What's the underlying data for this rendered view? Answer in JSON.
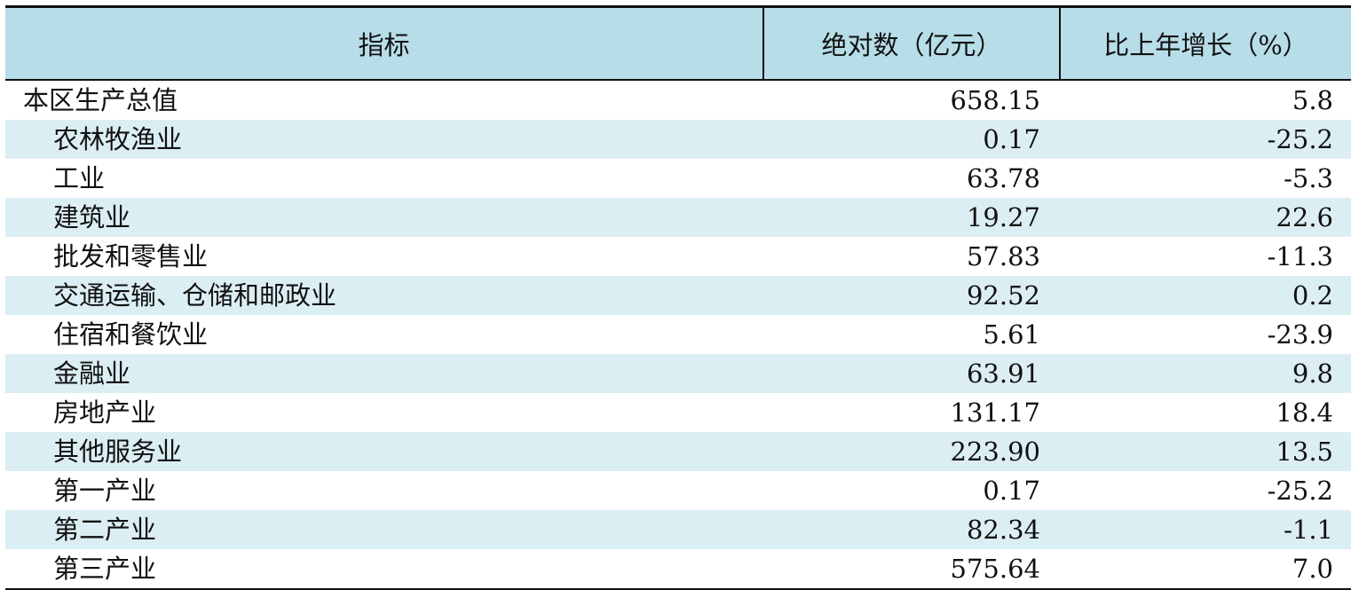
{
  "table": {
    "headers": [
      "指标",
      "绝对数（亿元）",
      "比上年增长（%）"
    ],
    "rows": [
      {
        "name": "本区生产总值",
        "value": "658.15",
        "growth": "5.8"
      },
      {
        "name": "农林牧渔业",
        "value": "0.17",
        "growth": "-25.2"
      },
      {
        "name": "工业",
        "value": "63.78",
        "growth": "-5.3"
      },
      {
        "name": "建筑业",
        "value": "19.27",
        "growth": "22.6"
      },
      {
        "name": "批发和零售业",
        "value": "57.83",
        "growth": "-11.3"
      },
      {
        "name": "交通运输、仓储和邮政业",
        "value": "92.52",
        "growth": "0.2"
      },
      {
        "name": "住宿和餐饮业",
        "value": "5.61",
        "growth": "-23.9"
      },
      {
        "name": "金融业",
        "value": "63.91",
        "growth": "9.8"
      },
      {
        "name": "房地产业",
        "value": "131.17",
        "growth": "18.4"
      },
      {
        "name": "其他服务业",
        "value": "223.90",
        "growth": "13.5"
      },
      {
        "name": "第一产业",
        "value": "0.17",
        "growth": "-25.2"
      },
      {
        "name": "第二产业",
        "value": "82.34",
        "growth": "-1.1"
      },
      {
        "name": "第三产业",
        "value": "575.64",
        "growth": "7.0"
      }
    ]
  },
  "colors": {
    "header_bg": "#b7dde8",
    "stripe_bg": "#dbeef3",
    "border": "#111111"
  }
}
